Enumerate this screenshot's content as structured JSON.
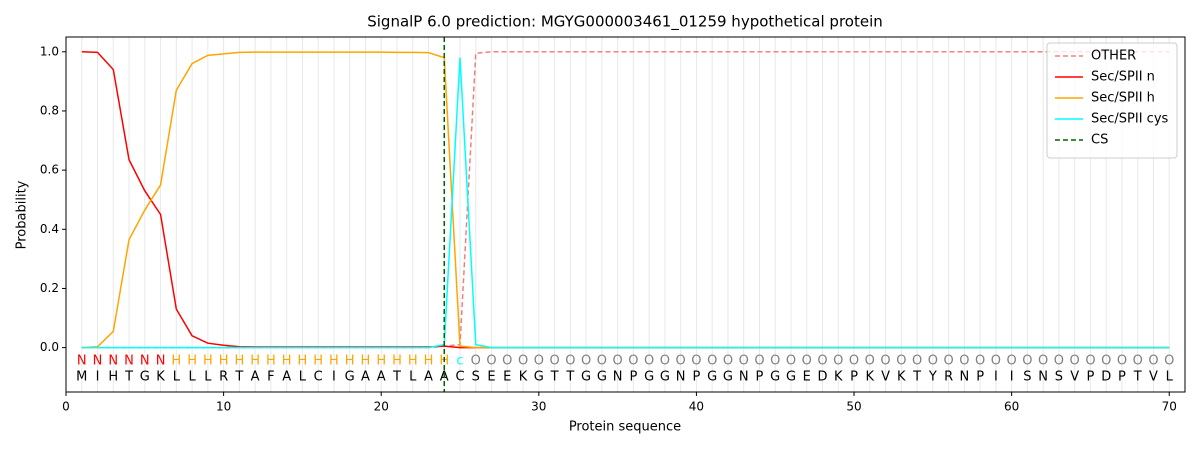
{
  "chart_data": {
    "type": "line",
    "title": "SignalP 6.0 prediction: MGYG000003461_01259 hypothetical protein",
    "xlabel": "Protein sequence",
    "ylabel": "Probability",
    "xlim": [
      0,
      71
    ],
    "ylim": [
      -0.15,
      1.05
    ],
    "xticks": [
      0,
      10,
      20,
      30,
      40,
      50,
      60,
      70
    ],
    "yticks": [
      {
        "value": 0,
        "label": "0.0"
      },
      0.2,
      0.4,
      0.6,
      0.8,
      {
        "value": 1,
        "label": "1.0"
      }
    ],
    "grid": true,
    "legend": "upper right",
    "x": [
      1,
      2,
      3,
      4,
      5,
      6,
      7,
      8,
      9,
      10,
      11,
      12,
      13,
      14,
      15,
      16,
      17,
      18,
      19,
      20,
      21,
      22,
      23,
      24,
      25,
      26,
      27,
      28,
      29,
      30,
      31,
      32,
      33,
      34,
      35,
      36,
      37,
      38,
      39,
      40,
      41,
      42,
      43,
      44,
      45,
      46,
      47,
      48,
      49,
      50,
      51,
      52,
      53,
      54,
      55,
      56,
      57,
      58,
      59,
      60,
      61,
      62,
      63,
      64,
      65,
      66,
      67,
      68,
      69,
      70
    ],
    "series": [
      {
        "name": "OTHER",
        "color": "#f08080",
        "dash": true,
        "values": [
          0,
          0,
          0,
          0,
          0,
          0,
          0,
          0,
          0,
          0,
          0,
          0,
          0,
          0,
          0,
          0,
          0,
          0,
          0,
          0,
          0,
          0,
          0,
          0.005,
          0.01,
          0.995,
          1,
          1,
          1,
          1,
          1,
          1,
          1,
          1,
          1,
          1,
          1,
          1,
          1,
          1,
          1,
          1,
          1,
          1,
          1,
          1,
          1,
          1,
          1,
          1,
          1,
          1,
          1,
          1,
          1,
          1,
          1,
          1,
          1,
          1,
          1,
          1,
          1,
          1,
          1,
          1,
          1,
          1,
          1,
          1
        ]
      },
      {
        "name": "Sec/SPII n",
        "color": "#ff0000",
        "dash": false,
        "values": [
          1.0,
          0.998,
          0.94,
          0.635,
          0.53,
          0.45,
          0.13,
          0.04,
          0.015,
          0.008,
          0.003,
          0.002,
          0.002,
          0.002,
          0.002,
          0.002,
          0.002,
          0.002,
          0.002,
          0.002,
          0.002,
          0.002,
          0.002,
          0.005,
          0,
          0,
          0,
          0,
          0,
          0,
          0,
          0,
          0,
          0,
          0,
          0,
          0,
          0,
          0,
          0,
          0,
          0,
          0,
          0,
          0,
          0,
          0,
          0,
          0,
          0,
          0,
          0,
          0,
          0,
          0,
          0,
          0,
          0,
          0,
          0,
          0,
          0,
          0,
          0,
          0,
          0,
          0,
          0,
          0,
          0
        ]
      },
      {
        "name": "Sec/SPII h",
        "color": "#ffa500",
        "dash": false,
        "values": [
          0,
          0.003,
          0.055,
          0.365,
          0.465,
          0.55,
          0.87,
          0.96,
          0.988,
          0.993,
          0.998,
          0.999,
          0.999,
          0.999,
          0.999,
          0.999,
          0.999,
          0.999,
          0.999,
          0.999,
          0.998,
          0.998,
          0.997,
          0.98,
          0.005,
          0,
          0,
          0,
          0,
          0,
          0,
          0,
          0,
          0,
          0,
          0,
          0,
          0,
          0,
          0,
          0,
          0,
          0,
          0,
          0,
          0,
          0,
          0,
          0,
          0,
          0,
          0,
          0,
          0,
          0,
          0,
          0,
          0,
          0,
          0,
          0,
          0,
          0,
          0,
          0,
          0,
          0,
          0,
          0,
          0
        ]
      },
      {
        "name": "Sec/SPII cys",
        "color": "#00ffff",
        "dash": false,
        "values": [
          0,
          0,
          0,
          0,
          0,
          0,
          0,
          0,
          0,
          0,
          0,
          0,
          0,
          0,
          0,
          0,
          0,
          0,
          0,
          0,
          0,
          0,
          0,
          0.01,
          0.98,
          0.01,
          0,
          0,
          0,
          0,
          0,
          0,
          0,
          0,
          0,
          0,
          0,
          0,
          0,
          0,
          0,
          0,
          0,
          0,
          0,
          0,
          0,
          0,
          0,
          0,
          0,
          0,
          0,
          0,
          0,
          0,
          0,
          0,
          0,
          0,
          0,
          0,
          0,
          0,
          0,
          0,
          0,
          0,
          0,
          0
        ]
      }
    ],
    "cs": {
      "name": "CS",
      "color": "#006400",
      "x": 24
    },
    "sequence": [
      "M",
      "I",
      "H",
      "T",
      "G",
      "K",
      "L",
      "L",
      "L",
      "R",
      "T",
      "A",
      "F",
      "A",
      "L",
      "C",
      "I",
      "G",
      "A",
      "A",
      "T",
      "L",
      "A",
      "A",
      "C",
      "S",
      "E",
      "E",
      "K",
      "G",
      "T",
      "T",
      "G",
      "G",
      "N",
      "P",
      "G",
      "G",
      "N",
      "P",
      "G",
      "G",
      "N",
      "P",
      "G",
      "G",
      "E",
      "D",
      "K",
      "P",
      "K",
      "V",
      "K",
      "T",
      "Y",
      "R",
      "N",
      "P",
      "I",
      "I",
      "S",
      "N",
      "S",
      "V",
      "P",
      "D",
      "P",
      "T",
      "V",
      "L"
    ],
    "labels": [
      "N",
      "N",
      "N",
      "N",
      "N",
      "N",
      "H",
      "H",
      "H",
      "H",
      "H",
      "H",
      "H",
      "H",
      "H",
      "H",
      "H",
      "H",
      "H",
      "H",
      "H",
      "H",
      "H",
      "H",
      "c",
      "O",
      "O",
      "O",
      "O",
      "O",
      "O",
      "O",
      "O",
      "O",
      "O",
      "O",
      "O",
      "O",
      "O",
      "O",
      "O",
      "O",
      "O",
      "O",
      "O",
      "O",
      "O",
      "O",
      "O",
      "O",
      "O",
      "O",
      "O",
      "O",
      "O",
      "O",
      "O",
      "O",
      "O",
      "O",
      "O",
      "O",
      "O",
      "O",
      "O",
      "O",
      "O",
      "O",
      "O",
      "O"
    ],
    "label_colors": {
      "N": "#ff0000",
      "H": "#ffa500",
      "c": "#00ffff",
      "O": "#808080"
    }
  }
}
